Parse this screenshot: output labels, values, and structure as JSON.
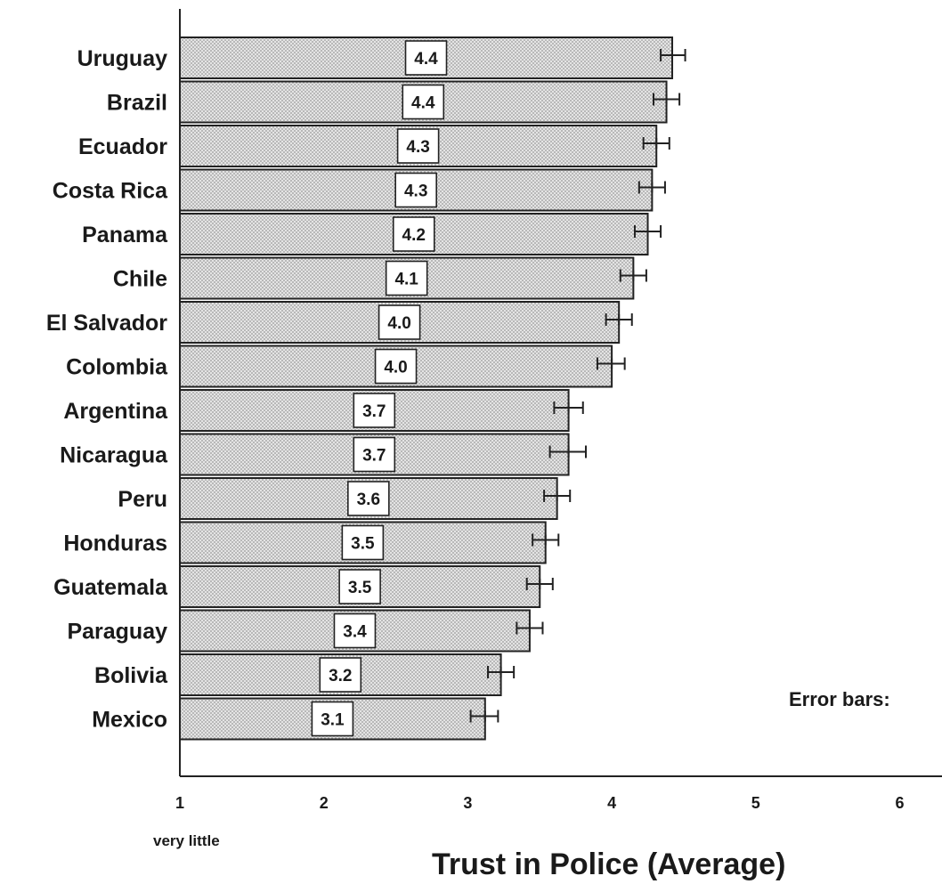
{
  "chart_data": {
    "type": "bar",
    "orientation": "horizontal",
    "xlabel": "Trust in Police (Average)",
    "x_tick_labels": [
      "1",
      "2",
      "3",
      "4",
      "5",
      "6"
    ],
    "x_min_anchor_label": "very little",
    "error_bars_note": "Error bars:",
    "xlim": [
      1,
      6.3
    ],
    "categories": [
      "Uruguay",
      "Brazil",
      "Ecuador",
      "Costa Rica",
      "Panama",
      "Chile",
      "El Salvador",
      "Colombia",
      "Argentina",
      "Nicaragua",
      "Peru",
      "Honduras",
      "Guatemala",
      "Paraguay",
      "Bolivia",
      "Mexico"
    ],
    "values": [
      4.42,
      4.38,
      4.31,
      4.28,
      4.25,
      4.15,
      4.05,
      4.0,
      3.7,
      3.7,
      3.62,
      3.54,
      3.5,
      3.43,
      3.23,
      3.12
    ],
    "value_labels": [
      "4.4",
      "4.4",
      "4.3",
      "4.3",
      "4.2",
      "4.1",
      "4.0",
      "4.0",
      "3.7",
      "3.7",
      "3.6",
      "3.5",
      "3.5",
      "3.4",
      "3.2",
      "3.1"
    ],
    "error_low": [
      4.34,
      4.29,
      4.22,
      4.19,
      4.16,
      4.06,
      3.96,
      3.9,
      3.6,
      3.57,
      3.53,
      3.45,
      3.41,
      3.34,
      3.14,
      3.02
    ],
    "error_high": [
      4.51,
      4.47,
      4.4,
      4.37,
      4.34,
      4.24,
      4.14,
      4.09,
      3.8,
      3.82,
      3.71,
      3.63,
      3.59,
      3.52,
      3.32,
      3.21
    ],
    "grid": false,
    "colors": {
      "bar_fill": "#d9d9d9",
      "bar_stroke": "#222222",
      "text": "#1a1a1a"
    }
  }
}
